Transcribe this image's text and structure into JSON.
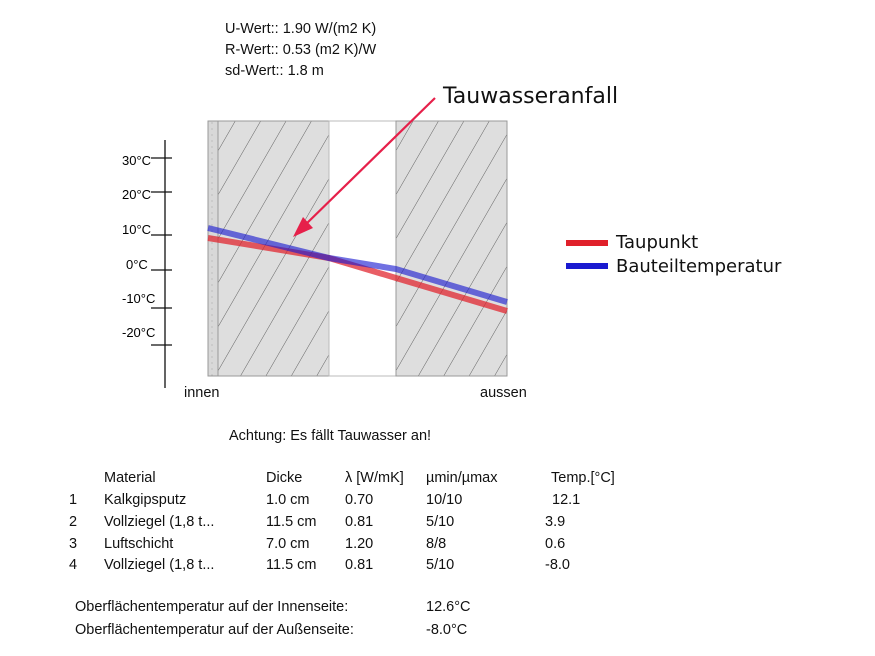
{
  "header": {
    "u_value": "U-Wert:: 1.90 W/(m2 K)",
    "r_value": "R-Wert:: 0.53 (m2 K)/W",
    "sd_value": "sd-Wert:: 1.8 m"
  },
  "annotation": {
    "label": "Tauwasseranfall"
  },
  "axis": {
    "ticks": [
      "30°C",
      "20°C",
      "10°C",
      "0°C",
      "-10°C",
      "-20°C"
    ],
    "left_label": "innen",
    "right_label": "aussen"
  },
  "legend": [
    {
      "label": "Taupunkt",
      "color": "#e0202a"
    },
    {
      "label": "Bauteiltemperatur",
      "color": "#1a1ad0"
    }
  ],
  "warning": "Achtung: Es fällt Tauwasser an!",
  "table": {
    "headers": [
      "Material",
      "Dicke",
      "λ [W/mK]",
      "µmin/µmax",
      "Temp.[°C]"
    ],
    "rows": [
      {
        "num": "1",
        "material": "Kalkgipsputz",
        "dicke": "1.0 cm",
        "lambda": "0.70",
        "mu": "10/10",
        "temp": "12.1"
      },
      {
        "num": "2",
        "material": "Vollziegel (1,8 t...",
        "dicke": "11.5 cm",
        "lambda": "0.81",
        "mu": "5/10",
        "temp": "3.9"
      },
      {
        "num": "3",
        "material": "Luftschicht",
        "dicke": "7.0 cm",
        "lambda": "1.20",
        "mu": "8/8",
        "temp": "0.6"
      },
      {
        "num": "4",
        "material": "Vollziegel (1,8 t...",
        "dicke": "11.5 cm",
        "lambda": "0.81",
        "mu": "5/10",
        "temp": "-8.0"
      }
    ]
  },
  "surface": {
    "inner_label": "Oberflächentemperatur auf der Innenseite:",
    "inner_value": "12.6°C",
    "outer_label": "Oberflächentemperatur auf der Außenseite:",
    "outer_value": "-8.0°C"
  },
  "colors": {
    "dewpoint": "#e0202a",
    "component": "#1a1ad0",
    "arrow": "#e6204a",
    "layer_fill": "#dedede"
  }
}
